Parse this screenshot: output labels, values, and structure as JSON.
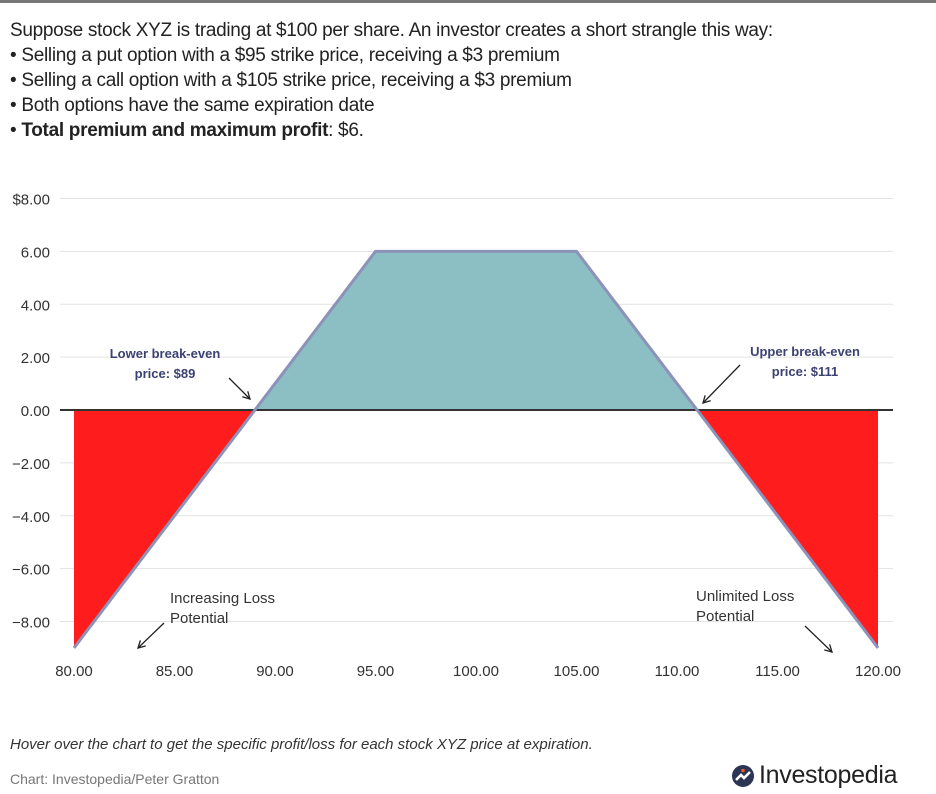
{
  "intro": {
    "lead": "Suppose stock XYZ is trading at $100 per share. An investor creates a short strangle this way:",
    "bullets": [
      "Selling a put option with a $95 strike price, receiving a $3 premium",
      "Selling a call option with a $105 strike price, receiving a $3 premium",
      "Both options have the same expiration date"
    ],
    "last_bold": "Total premium and maximum profit",
    "last_rest": ": $6."
  },
  "chart_data": {
    "type": "area",
    "x": [
      80,
      89,
      95,
      105,
      111,
      120
    ],
    "y": [
      -9,
      0,
      6,
      6,
      0,
      -9
    ],
    "xlim": [
      80,
      120
    ],
    "ylim": [
      -9,
      8
    ],
    "x_ticks": [
      "80.00",
      "85.00",
      "90.00",
      "95.00",
      "100.00",
      "105.00",
      "110.00",
      "115.00",
      "120.00"
    ],
    "y_ticks": [
      "$8.00",
      "6.00",
      "4.00",
      "2.00",
      "0.00",
      "−2.00",
      "−4.00",
      "−6.00",
      "−8.00"
    ],
    "grid": true,
    "colors": {
      "profit": "#8bbfc4",
      "loss": "#ff1c1c",
      "line": "#8c92b8",
      "zero": "#333333",
      "annotation": "#3b4272"
    },
    "annotations": {
      "lower_break_even": [
        "Lower break-even",
        "price: $89"
      ],
      "upper_break_even": [
        "Upper break-even",
        "price: $111"
      ],
      "increasing_loss": [
        "Increasing Loss",
        "Potential"
      ],
      "unlimited_loss": [
        "Unlimited Loss",
        "Potential"
      ]
    }
  },
  "footer": {
    "note": "Hover over the chart to get the specific profit/loss for each stock XYZ price at expiration.",
    "credit": "Chart: Investopedia/Peter Gratton",
    "logo": "Investopedia"
  }
}
